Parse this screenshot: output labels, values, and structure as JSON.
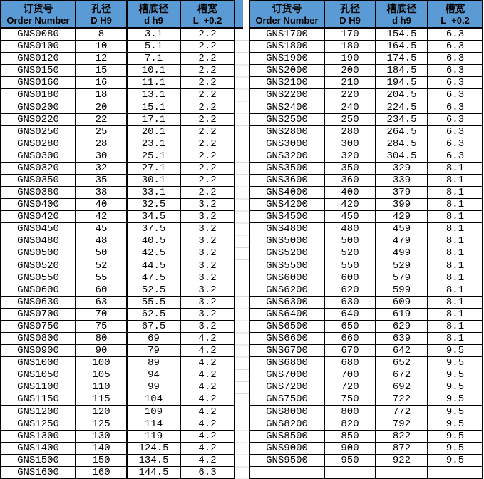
{
  "colors": {
    "header_bg": "#5b9bd5",
    "border": "#000000",
    "gridline": "#d9d9d9",
    "text": "#000000"
  },
  "columns": [
    {
      "key": "order-number",
      "zh": "订货号",
      "en": "Order Number"
    },
    {
      "key": "bore-diameter",
      "zh": "孔径",
      "en": "D H9"
    },
    {
      "key": "groove-bottom-diameter",
      "zh": "槽底径",
      "en": "d h9"
    },
    {
      "key": "groove-width",
      "zh": "槽宽",
      "en": "L  +0.2"
    }
  ],
  "left_table": {
    "rows": [
      [
        "GNS0080",
        "8",
        "3.1",
        "2.2"
      ],
      [
        "GNS0100",
        "10",
        "5.1",
        "2.2"
      ],
      [
        "GNS0120",
        "12",
        "7.1",
        "2.2"
      ],
      [
        "GNS0150",
        "15",
        "10.1",
        "2.2"
      ],
      [
        "GNS0160",
        "16",
        "11.1",
        "2.2"
      ],
      [
        "GNS0180",
        "18",
        "13.1",
        "2.2"
      ],
      [
        "GNS0200",
        "20",
        "15.1",
        "2.2"
      ],
      [
        "GNS0220",
        "22",
        "17.1",
        "2.2"
      ],
      [
        "GNS0250",
        "25",
        "20.1",
        "2.2"
      ],
      [
        "GNS0280",
        "28",
        "23.1",
        "2.2"
      ],
      [
        "GNS0300",
        "30",
        "25.1",
        "2.2"
      ],
      [
        "GNS0320",
        "32",
        "27.1",
        "2.2"
      ],
      [
        "GNS0350",
        "35",
        "30.1",
        "2.2"
      ],
      [
        "GNS0380",
        "38",
        "33.1",
        "2.2"
      ],
      [
        "GNS0400",
        "40",
        "32.5",
        "3.2"
      ],
      [
        "GNS0420",
        "42",
        "34.5",
        "3.2"
      ],
      [
        "GNS0450",
        "45",
        "37.5",
        "3.2"
      ],
      [
        "GNS0480",
        "48",
        "40.5",
        "3.2"
      ],
      [
        "GNS0500",
        "50",
        "42.5",
        "3.2"
      ],
      [
        "GNS0520",
        "52",
        "44.5",
        "3.2"
      ],
      [
        "GNS0550",
        "55",
        "47.5",
        "3.2"
      ],
      [
        "GNS0600",
        "60",
        "52.5",
        "3.2"
      ],
      [
        "GNS0630",
        "63",
        "55.5",
        "3.2"
      ],
      [
        "GNS0700",
        "70",
        "62.5",
        "3.2"
      ],
      [
        "GNS0750",
        "75",
        "67.5",
        "3.2"
      ],
      [
        "GNS0800",
        "80",
        "69",
        "4.2"
      ],
      [
        "GNS0900",
        "90",
        "79",
        "4.2"
      ],
      [
        "GNS1000",
        "100",
        "89",
        "4.2"
      ],
      [
        "GNS1050",
        "105",
        "94",
        "4.2"
      ],
      [
        "GNS1100",
        "110",
        "99",
        "4.2"
      ],
      [
        "GNS1150",
        "115",
        "104",
        "4.2"
      ],
      [
        "GNS1200",
        "120",
        "109",
        "4.2"
      ],
      [
        "GNS1250",
        "125",
        "114",
        "4.2"
      ],
      [
        "GNS1300",
        "130",
        "119",
        "4.2"
      ],
      [
        "GNS1400",
        "140",
        "124.5",
        "4.2"
      ],
      [
        "GNS1500",
        "150",
        "134.5",
        "4.2"
      ],
      [
        "GNS1600",
        "160",
        "144.5",
        "6.3"
      ]
    ]
  },
  "right_table": {
    "rows": [
      [
        "GNS1700",
        "170",
        "154.5",
        "6.3"
      ],
      [
        "GNS1800",
        "180",
        "164.5",
        "6.3"
      ],
      [
        "GNS1900",
        "190",
        "174.5",
        "6.3"
      ],
      [
        "GNS2000",
        "200",
        "184.5",
        "6.3"
      ],
      [
        "GNS2100",
        "210",
        "194.5",
        "6.3"
      ],
      [
        "GNS2200",
        "220",
        "204.5",
        "6.3"
      ],
      [
        "GNS2400",
        "240",
        "224.5",
        "6.3"
      ],
      [
        "GNS2500",
        "250",
        "234.5",
        "6.3"
      ],
      [
        "GNS2800",
        "280",
        "264.5",
        "6.3"
      ],
      [
        "GNS3000",
        "300",
        "284.5",
        "6.3"
      ],
      [
        "GNS3200",
        "320",
        "304.5",
        "6.3"
      ],
      [
        "GNS3500",
        "350",
        "329",
        "8.1"
      ],
      [
        "GNS3600",
        "360",
        "339",
        "8.1"
      ],
      [
        "GNS4000",
        "400",
        "379",
        "8.1"
      ],
      [
        "GNS4200",
        "420",
        "399",
        "8.1"
      ],
      [
        "GNS4500",
        "450",
        "429",
        "8.1"
      ],
      [
        "GNS4800",
        "480",
        "459",
        "8.1"
      ],
      [
        "GNS5000",
        "500",
        "479",
        "8.1"
      ],
      [
        "GNS5200",
        "520",
        "499",
        "8.1"
      ],
      [
        "GNS5500",
        "550",
        "529",
        "8.1"
      ],
      [
        "GNS6000",
        "600",
        "579",
        "8.1"
      ],
      [
        "GNS6200",
        "620",
        "599",
        "8.1"
      ],
      [
        "GNS6300",
        "630",
        "609",
        "8.1"
      ],
      [
        "GNS6400",
        "640",
        "619",
        "8.1"
      ],
      [
        "GNS6500",
        "650",
        "629",
        "8.1"
      ],
      [
        "GNS6600",
        "660",
        "639",
        "8.1"
      ],
      [
        "GNS6700",
        "670",
        "642",
        "9.5"
      ],
      [
        "GNS6800",
        "680",
        "652",
        "9.5"
      ],
      [
        "GNS7000",
        "700",
        "672",
        "9.5"
      ],
      [
        "GNS7200",
        "720",
        "692",
        "9.5"
      ],
      [
        "GNS7500",
        "750",
        "722",
        "9.5"
      ],
      [
        "GNS8000",
        "800",
        "772",
        "9.5"
      ],
      [
        "GNS8200",
        "820",
        "792",
        "9.5"
      ],
      [
        "GNS8500",
        "850",
        "822",
        "9.5"
      ],
      [
        "GNS9000",
        "900",
        "872",
        "9.5"
      ],
      [
        "GNS9500",
        "950",
        "922",
        "9.5"
      ],
      [
        "",
        "",
        "",
        ""
      ]
    ]
  }
}
